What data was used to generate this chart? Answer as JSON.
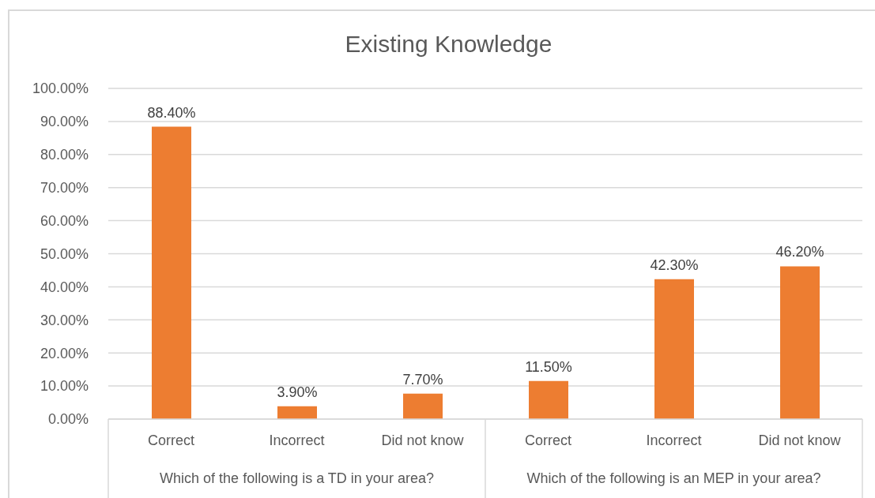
{
  "chart_data": {
    "type": "bar",
    "title": "Existing Knowledge",
    "categories": [
      "Correct",
      "Incorrect",
      "Did not know",
      "Correct",
      "Incorrect",
      "Did not know"
    ],
    "values": [
      88.4,
      3.9,
      7.7,
      11.5,
      42.3,
      46.2
    ],
    "color": "#ed7d31",
    "value_labels": [
      "88.40%",
      "3.90%",
      "7.70%",
      "11.50%",
      "42.30%",
      "46.20%"
    ],
    "ylim": [
      0,
      100
    ],
    "yticks": [
      {
        "value": 0,
        "label": "0.00%"
      },
      {
        "value": 10,
        "label": "10.00%"
      },
      {
        "value": 20,
        "label": "20.00%"
      },
      {
        "value": 30,
        "label": "30.00%"
      },
      {
        "value": 40,
        "label": "40.00%"
      },
      {
        "value": 50,
        "label": "50.00%"
      },
      {
        "value": 60,
        "label": "60.00%"
      },
      {
        "value": 70,
        "label": "70.00%"
      },
      {
        "value": 80,
        "label": "80.00%"
      },
      {
        "value": 90,
        "label": "90.00%"
      },
      {
        "value": 100,
        "label": "100.00%"
      }
    ],
    "grid": "y",
    "annotations": [
      "Which of the following is a TD in your area?",
      "Which of the following is an MEP in your area?"
    ]
  }
}
